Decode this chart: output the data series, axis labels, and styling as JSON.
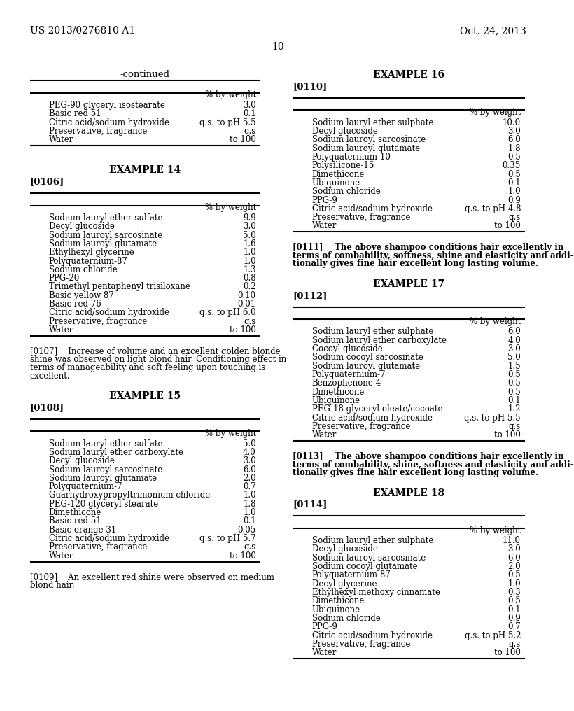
{
  "header_left": "US 2013/0276810 A1",
  "header_right": "Oct. 24, 2013",
  "page_number": "10",
  "bg_color": "#ffffff",
  "text_color": "#000000",
  "left_col": {
    "continued_title": "-continued",
    "continued_table": {
      "header": "% by weight",
      "rows": [
        [
          "PEG-90 glyceryl isostearate",
          "3.0"
        ],
        [
          "Basic red 51",
          "0.1"
        ],
        [
          "Citric acid/sodium hydroxide",
          "q.s. to pH 5.5"
        ],
        [
          "Preservative, fragrance",
          "q.s"
        ],
        [
          "Water",
          "to 100"
        ]
      ]
    },
    "example14_title": "EXAMPLE 14",
    "example14_ref": "[0106]",
    "example14_table": {
      "header": "% by weight",
      "rows": [
        [
          "Sodium lauryl ether sulfate",
          "9.9"
        ],
        [
          "Decyl glucoside",
          "3.0"
        ],
        [
          "Sodium lauroyl sarcosinate",
          "5.0"
        ],
        [
          "Sodium lauroyl glutamate",
          "1.6"
        ],
        [
          "Ethylhexyl glycerine",
          "1.0"
        ],
        [
          "Polyquaternium-87",
          "1.0"
        ],
        [
          "Sodium chloride",
          "1.3"
        ],
        [
          "PPG-20",
          "0.8"
        ],
        [
          "Trimethyl pentaphenyl trisiloxane",
          "0.2"
        ],
        [
          "Basic yellow 87",
          "0.10"
        ],
        [
          "Basic red 76",
          "0.01"
        ],
        [
          "Citric acid/sodium hydroxide",
          "q.s. to pH 6.0"
        ],
        [
          "Preservative, fragrance",
          "q.s"
        ],
        [
          "Water",
          "to 100"
        ]
      ]
    },
    "example14_text": "[0107]    Increase of volume and an excellent golden blonde\nshine was observed on light blond hair. Conditioning effect in\nterms of manageability and soft feeling upon touching is\nexcellent.",
    "example15_title": "EXAMPLE 15",
    "example15_ref": "[0108]",
    "example15_table": {
      "header": "% by weight",
      "rows": [
        [
          "Sodium lauryl ether sulfate",
          "5.0"
        ],
        [
          "Sodium lauryl ether carboxylate",
          "4.0"
        ],
        [
          "Decyl glucoside",
          "3.0"
        ],
        [
          "Sodium lauroyl sarcosinate",
          "6.0"
        ],
        [
          "Sodium lauroyl glutamate",
          "2.0"
        ],
        [
          "Polyquaternium-7",
          "0.7"
        ],
        [
          "Guarhydroxypropyltrimonium chloride",
          "1.0"
        ],
        [
          "PEG-120 glyceryl stearate",
          "1.8"
        ],
        [
          "Dimethicone",
          "1.0"
        ],
        [
          "Basic red 51",
          "0.1"
        ],
        [
          "Basic orange 31",
          "0.05"
        ],
        [
          "Citric acid/sodium hydroxide",
          "q.s. to pH 5.7"
        ],
        [
          "Preservative, fragrance",
          "q.s"
        ],
        [
          "Water",
          "to 100"
        ]
      ]
    },
    "example15_text": "[0109]    An excellent red shine were observed on medium\nblond hair."
  },
  "right_col": {
    "example16_title": "EXAMPLE 16",
    "example16_ref": "[0110]",
    "example16_table": {
      "header": "% by weight",
      "rows": [
        [
          "Sodium lauryl ether sulphate",
          "10.0"
        ],
        [
          "Decyl glucoside",
          "3.0"
        ],
        [
          "Sodium lauroyl sarcosinate",
          "6.0"
        ],
        [
          "Sodium lauroyl glutamate",
          "1.8"
        ],
        [
          "Polyquaternium-10",
          "0.5"
        ],
        [
          "Polysilicone-15",
          "0.35"
        ],
        [
          "Dimethicone",
          "0.5"
        ],
        [
          "Ubiquinone",
          "0.1"
        ],
        [
          "Sodium chloride",
          "1.0"
        ],
        [
          "PPG-9",
          "0.9"
        ],
        [
          "Citric acid/sodium hydroxide",
          "q.s. to pH 4.8"
        ],
        [
          "Preservative, fragrance",
          "q.s"
        ],
        [
          "Water",
          "to 100"
        ]
      ]
    },
    "example16_text": "[0111]    The above shampoo conditions hair excellently in\nterms of combability, softness, shine and elasticity and addi-\ntionally gives fine hair excellent long lasting volume.",
    "example17_title": "EXAMPLE 17",
    "example17_ref": "[0112]",
    "example17_table": {
      "header": "% by weight",
      "rows": [
        [
          "Sodium lauryl ether sulphate",
          "6.0"
        ],
        [
          "Sodium lauryl ether carboxylate",
          "4.0"
        ],
        [
          "Cocoyl glucoside",
          "3.0"
        ],
        [
          "Sodium cocoyl sarcosinate",
          "5.0"
        ],
        [
          "Sodium lauroyl glutamate",
          "1.5"
        ],
        [
          "Polyquaternium-7",
          "0.5"
        ],
        [
          "Benzophenone-4",
          "0.5"
        ],
        [
          "Dimethicone",
          "0.5"
        ],
        [
          "Ubiquinone",
          "0.1"
        ],
        [
          "PEG-18 glyceryl oleate/cocoate",
          "1.2"
        ],
        [
          "Citric acid/sodium hydroxide",
          "q.s. to pH 5.5"
        ],
        [
          "Preservative, fragrance",
          "q.s"
        ],
        [
          "Water",
          "to 100"
        ]
      ]
    },
    "example17_text": "[0113]    The above shampoo conditions hair excellently in\nterms of combability, shine, softness and elasticity and addi-\ntionally gives fine hair excellent long lasting volume.",
    "example18_title": "EXAMPLE 18",
    "example18_ref": "[0114]",
    "example18_table": {
      "header": "% by weight",
      "rows": [
        [
          "Sodium lauryl ether sulphate",
          "11.0"
        ],
        [
          "Decyl glucoside",
          "3.0"
        ],
        [
          "Sodium lauroyl sarcosinate",
          "6.0"
        ],
        [
          "Sodium cocoyl glutamate",
          "2.0"
        ],
        [
          "Polyquaternium-87",
          "0.5"
        ],
        [
          "Decyl glycerine",
          "1.0"
        ],
        [
          "Ethylhexyl methoxy cinnamate",
          "0.3"
        ],
        [
          "Dimethicone",
          "0.5"
        ],
        [
          "Ubiquinone",
          "0.1"
        ],
        [
          "Sodium chloride",
          "0.9"
        ],
        [
          "PPG-9",
          "0.7"
        ],
        [
          "Citric acid/sodium hydroxide",
          "q.s. to pH 5.2"
        ],
        [
          "Preservative, fragrance",
          "q.s"
        ],
        [
          "Water",
          "to 100"
        ]
      ]
    }
  }
}
